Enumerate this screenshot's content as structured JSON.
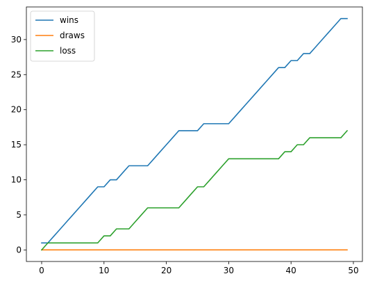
{
  "chart_data": {
    "type": "line",
    "title": "",
    "xlabel": "",
    "ylabel": "",
    "xlim": [
      -2.45,
      51.45
    ],
    "ylim": [
      -1.65,
      34.65
    ],
    "xticks": [
      0,
      10,
      20,
      30,
      40,
      50
    ],
    "yticks": [
      0,
      5,
      10,
      15,
      20,
      25,
      30
    ],
    "grid": false,
    "legend_position": "top-left",
    "x": [
      0,
      1,
      2,
      3,
      4,
      5,
      6,
      7,
      8,
      9,
      10,
      11,
      12,
      13,
      14,
      15,
      16,
      17,
      18,
      19,
      20,
      21,
      22,
      23,
      24,
      25,
      26,
      27,
      28,
      29,
      30,
      31,
      32,
      33,
      34,
      35,
      36,
      37,
      38,
      39,
      40,
      41,
      42,
      43,
      44,
      45,
      46,
      47,
      48,
      49
    ],
    "series": [
      {
        "name": "wins",
        "color": "#1f77b4",
        "values": [
          1,
          1,
          2,
          3,
          4,
          5,
          6,
          7,
          8,
          9,
          9,
          10,
          10,
          11,
          12,
          12,
          12,
          12,
          13,
          14,
          15,
          16,
          17,
          17,
          17,
          17,
          18,
          18,
          18,
          18,
          18,
          19,
          20,
          21,
          22,
          23,
          24,
          25,
          26,
          26,
          27,
          27,
          28,
          28,
          29,
          30,
          31,
          32,
          33,
          33
        ]
      },
      {
        "name": "draws",
        "color": "#ff7f0e",
        "values": [
          0,
          0,
          0,
          0,
          0,
          0,
          0,
          0,
          0,
          0,
          0,
          0,
          0,
          0,
          0,
          0,
          0,
          0,
          0,
          0,
          0,
          0,
          0,
          0,
          0,
          0,
          0,
          0,
          0,
          0,
          0,
          0,
          0,
          0,
          0,
          0,
          0,
          0,
          0,
          0,
          0,
          0,
          0,
          0,
          0,
          0,
          0,
          0,
          0,
          0
        ]
      },
      {
        "name": "loss",
        "color": "#2ca02c",
        "values": [
          0,
          1,
          1,
          1,
          1,
          1,
          1,
          1,
          1,
          1,
          2,
          2,
          3,
          3,
          3,
          4,
          5,
          6,
          6,
          6,
          6,
          6,
          6,
          7,
          8,
          9,
          9,
          10,
          11,
          12,
          13,
          13,
          13,
          13,
          13,
          13,
          13,
          13,
          13,
          14,
          14,
          15,
          15,
          16,
          16,
          16,
          16,
          16,
          16,
          17
        ]
      }
    ]
  }
}
